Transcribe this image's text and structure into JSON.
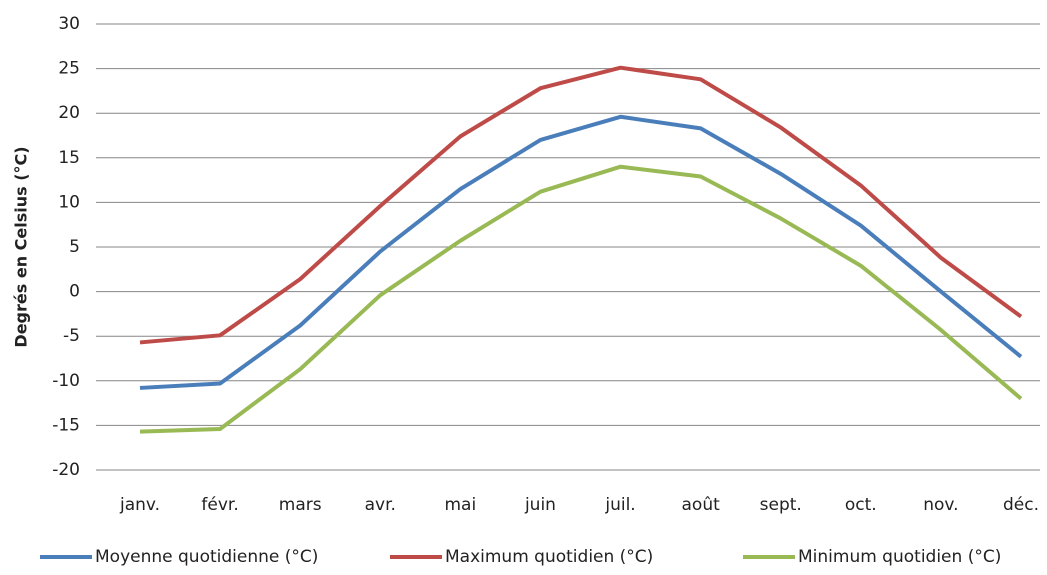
{
  "chart_data": {
    "type": "line",
    "ylabel": "Degrés en Celsius (°C)",
    "categories": [
      "janv.",
      "févr.",
      "mars",
      "avr.",
      "mai",
      "juin",
      "juil.",
      "août",
      "sept.",
      "oct.",
      "nov.",
      "déc."
    ],
    "series": [
      {
        "name": "Moyenne quotidienne (°C)",
        "color": "#4a7ebb",
        "values": [
          -10.8,
          -10.3,
          -3.8,
          4.5,
          11.5,
          17,
          19.6,
          18.3,
          13.2,
          7.4,
          0,
          -7.3
        ]
      },
      {
        "name": "Maximum quotidien (°C)",
        "color": "#be4b48",
        "values": [
          -5.7,
          -4.9,
          1.4,
          9.6,
          17.4,
          22.8,
          25.1,
          23.8,
          18.4,
          11.9,
          3.8,
          -2.8
        ]
      },
      {
        "name": "Minimum quotidien (°C)",
        "color": "#98b954",
        "values": [
          -15.7,
          -15.4,
          -8.7,
          -0.4,
          5.7,
          11.2,
          14,
          12.9,
          8.2,
          2.9,
          -4.3,
          -12
        ]
      }
    ],
    "ylim": [
      -20,
      30
    ],
    "yticks": [
      -20,
      -15,
      -10,
      -5,
      0,
      5,
      10,
      15,
      20,
      25,
      30
    ],
    "grid": true,
    "legend": "bottom"
  }
}
